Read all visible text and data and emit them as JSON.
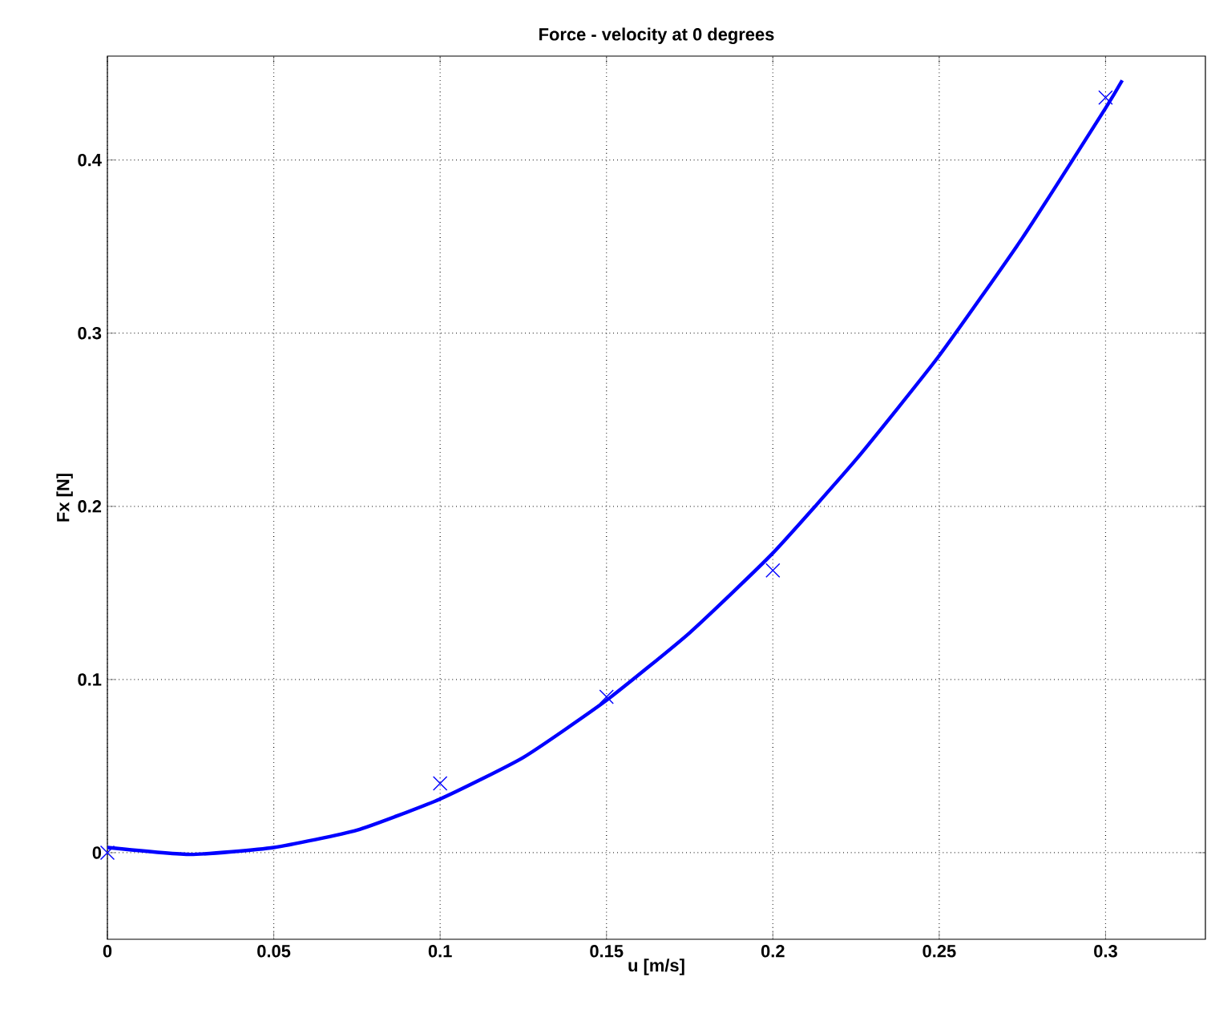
{
  "chart_data": {
    "type": "line",
    "title": "Force - velocity at 0 degrees",
    "xlabel": "u [m/s]",
    "ylabel": "Fx [N]",
    "xlim": [
      0,
      0.33
    ],
    "ylim": [
      -0.05,
      0.46
    ],
    "xticks": [
      0,
      0.05,
      0.1,
      0.15,
      0.2,
      0.25,
      0.3
    ],
    "yticks": [
      0,
      0.1,
      0.2,
      0.3,
      0.4
    ],
    "grid": true,
    "series": [
      {
        "type": "scatter",
        "color": "#0000ff",
        "marker": "cross",
        "x": [
          0,
          0.1,
          0.15,
          0.2,
          0.3
        ],
        "values": [
          0,
          0.04,
          0.09,
          0.163,
          0.436
        ]
      },
      {
        "color": "#0000ff",
        "marker": "none",
        "line_style": "solid",
        "x": [
          0,
          0.025,
          0.05,
          0.075,
          0.1,
          0.125,
          0.15,
          0.175,
          0.2,
          0.225,
          0.25,
          0.275,
          0.3,
          0.305
        ],
        "values": [
          0.003,
          -0.001,
          0.003,
          0.013,
          0.031,
          0.055,
          0.088,
          0.127,
          0.173,
          0.227,
          0.287,
          0.355,
          0.43,
          0.446
        ]
      }
    ]
  }
}
